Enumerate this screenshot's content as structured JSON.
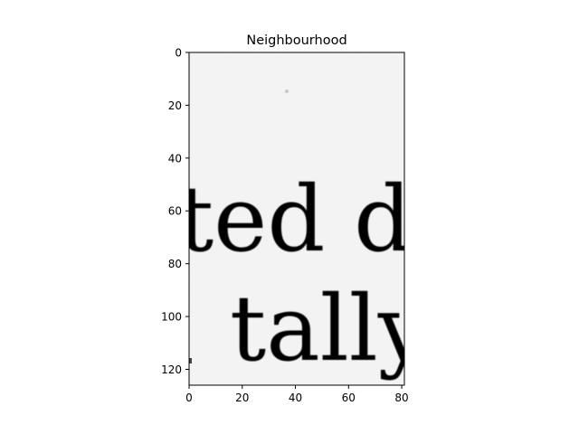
{
  "figure": {
    "title": "Neighbourhood",
    "image_text": [
      "ted d",
      "tally"
    ],
    "x_ticks": [
      "0",
      "20",
      "40",
      "60",
      "80"
    ],
    "y_ticks": [
      "0",
      "20",
      "40",
      "60",
      "80",
      "100",
      "120"
    ],
    "x_range": [
      0,
      81
    ],
    "y_range": [
      0,
      126
    ],
    "y_axis_inverted": true,
    "colormap": "gray"
  }
}
